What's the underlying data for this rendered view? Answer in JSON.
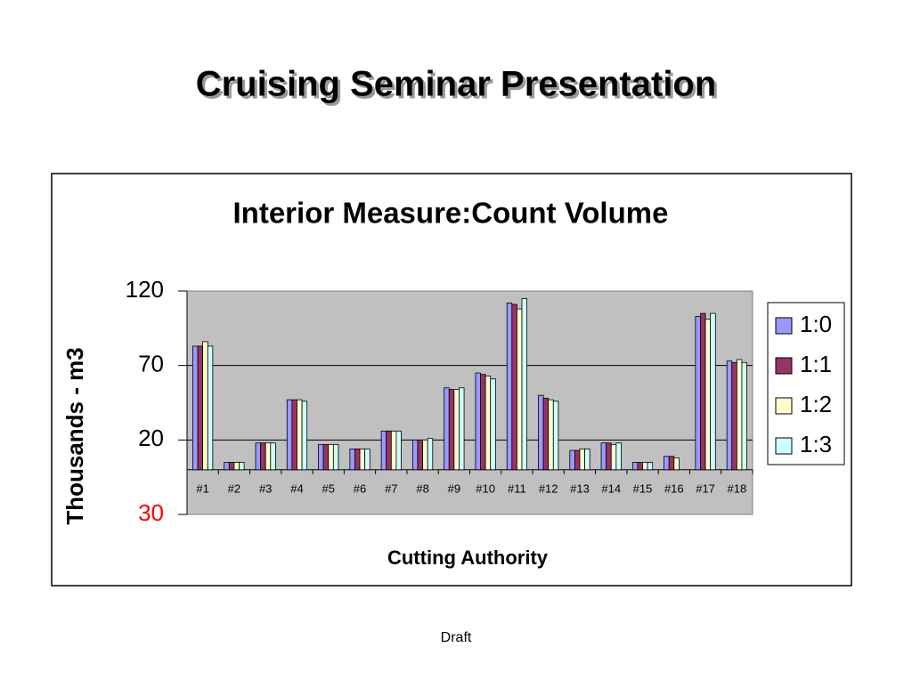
{
  "slide_title": "Cruising Seminar Presentation",
  "footer": "Draft",
  "chart_data": {
    "type": "bar",
    "title": "Interior Measure:Count Volume",
    "x_label": "Cutting Authority",
    "y_label": "Thousands - m3",
    "categories": [
      "#1",
      "#2",
      "#3",
      "#4",
      "#5",
      "#6",
      "#7",
      "#8",
      "#9",
      "#10",
      "#11",
      "#12",
      "#13",
      "#14",
      "#15",
      "#16",
      "#17",
      "#18"
    ],
    "series": [
      {
        "name": "1:0",
        "color": "#9999ff",
        "values": [
          83,
          5,
          18,
          47,
          17,
          14,
          26,
          20,
          55,
          65,
          112,
          50,
          13,
          18,
          5,
          9,
          103,
          73
        ]
      },
      {
        "name": "1:1",
        "color": "#993366",
        "values": [
          83,
          5,
          18,
          47,
          17,
          14,
          26,
          20,
          54,
          64,
          111,
          48,
          13,
          18,
          5,
          9,
          105,
          72
        ]
      },
      {
        "name": "1:2",
        "color": "#ffffcc",
        "values": [
          86,
          5,
          18,
          47,
          17,
          14,
          26,
          20,
          54,
          63,
          108,
          47,
          14,
          17,
          5,
          8,
          101,
          74
        ]
      },
      {
        "name": "1:3",
        "color": "#ccffff",
        "values": [
          83,
          5,
          18,
          46,
          17,
          14,
          26,
          21,
          55,
          61,
          115,
          46,
          14,
          18,
          5,
          null,
          105,
          72
        ]
      }
    ],
    "ylim": [
      -30,
      120
    ],
    "yticks": [
      {
        "value": -30,
        "label": "30",
        "color": "#ff0000"
      },
      20,
      70,
      120
    ],
    "grid": true,
    "legend": "right",
    "plot_background": "#c0c0c0"
  }
}
